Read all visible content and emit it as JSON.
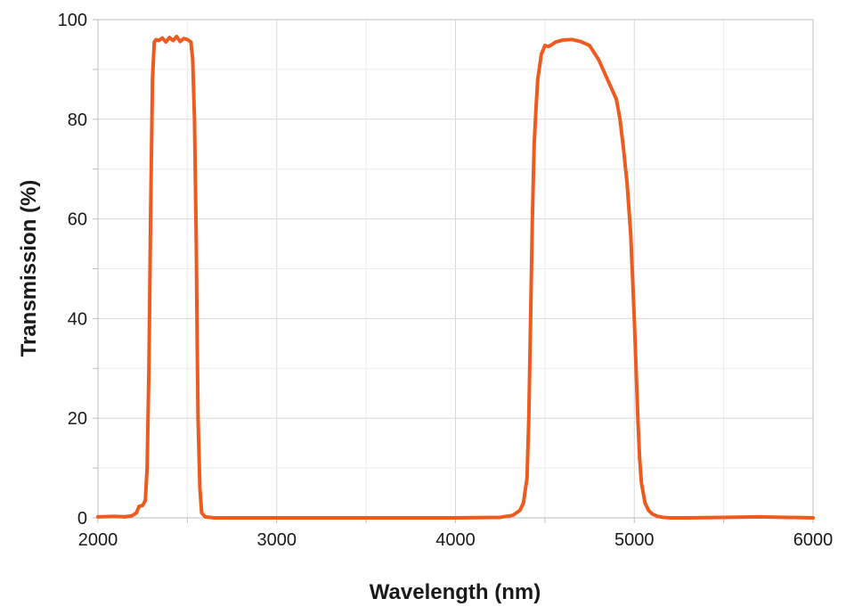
{
  "chart_data": {
    "type": "line",
    "title": "",
    "xlabel": "Wavelength (nm)",
    "ylabel": "Transmission (%)",
    "xlim": [
      2000,
      6000
    ],
    "ylim": [
      0,
      100
    ],
    "x_ticks": [
      2000,
      3000,
      4000,
      5000,
      6000
    ],
    "y_ticks": [
      0,
      20,
      40,
      60,
      80,
      100
    ],
    "grid": true,
    "legend": "none",
    "line_color": "#ef5a1e",
    "series": [
      {
        "x": [
          2000,
          2100,
          2150,
          2190,
          2215,
          2230,
          2250,
          2265,
          2275,
          2285,
          2295,
          2305,
          2315,
          2325,
          2340,
          2360,
          2380,
          2400,
          2420,
          2440,
          2460,
          2480,
          2500,
          2520,
          2530,
          2540,
          2550,
          2555,
          2560,
          2570,
          2580,
          2600,
          2650,
          3000,
          3500,
          4000,
          4250,
          4320,
          4360,
          4380,
          4400,
          4410,
          4420,
          4430,
          4440,
          4450,
          4460,
          4480,
          4500,
          4520,
          4540,
          4560,
          4600,
          4650,
          4700,
          4750,
          4800,
          4850,
          4900,
          4920,
          4940,
          4960,
          4980,
          5000,
          5010,
          5020,
          5030,
          5040,
          5060,
          5080,
          5100,
          5130,
          5160,
          5200,
          5300,
          5500,
          5700,
          6000
        ],
        "y": [
          0.2,
          0.3,
          0.2,
          0.4,
          1,
          2.3,
          2.5,
          3.5,
          10,
          30,
          62,
          88,
          95.5,
          96,
          95.8,
          96.3,
          95.5,
          96.4,
          95.8,
          96.6,
          95.6,
          96.2,
          96.0,
          95.5,
          92,
          80,
          55,
          35,
          20,
          6,
          1,
          0.2,
          0,
          0,
          0,
          0,
          0.1,
          0.5,
          1.5,
          3,
          8,
          20,
          40,
          60,
          75,
          82,
          88,
          93,
          94.8,
          94.6,
          95.0,
          95.5,
          95.9,
          96.0,
          95.6,
          94.8,
          92,
          88,
          84,
          80,
          74,
          67,
          57,
          40,
          30,
          20,
          12,
          7,
          3,
          1.5,
          0.8,
          0.3,
          0.1,
          0,
          0,
          0.1,
          0.2,
          0
        ]
      }
    ]
  }
}
